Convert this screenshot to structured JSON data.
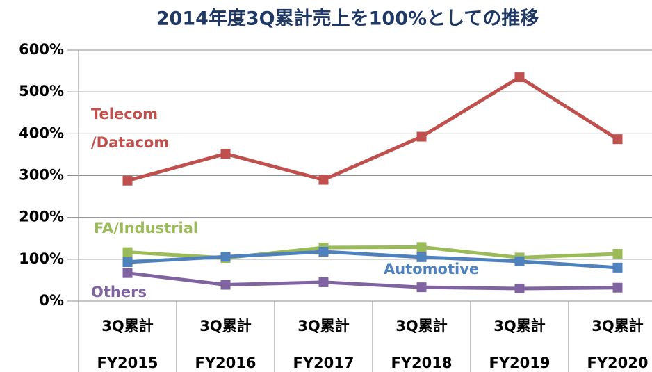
{
  "chart_data": {
    "type": "line",
    "title": "2014年度3Q累計売上を100%としての推移",
    "categories": [
      [
        "3Q累計",
        "FY2015"
      ],
      [
        "3Q累計",
        "FY2016"
      ],
      [
        "3Q累計",
        "FY2017"
      ],
      [
        "3Q累計",
        "FY2018"
      ],
      [
        "3Q累計",
        "FY2019"
      ],
      [
        "3Q累計",
        "FY2020"
      ]
    ],
    "series": [
      {
        "name": "Telecom\n/Datacom",
        "color": "#c0504d",
        "values": [
          288,
          352,
          290,
          393,
          535,
          387
        ]
      },
      {
        "name": "FA/Industrial",
        "color": "#9bbb59",
        "values": [
          117,
          103,
          128,
          129,
          104,
          113
        ]
      },
      {
        "name": "Automotive",
        "color": "#4f81bd",
        "values": [
          93,
          106,
          118,
          105,
          95,
          80
        ]
      },
      {
        "name": "Others",
        "color": "#8064a2",
        "values": [
          67,
          39,
          45,
          33,
          30,
          32
        ]
      }
    ],
    "ylim": [
      0,
      600
    ],
    "yticks": [
      {
        "value": 0,
        "label": "0%"
      },
      {
        "value": 100,
        "label": "100%"
      },
      {
        "value": 200,
        "label": "200%"
      },
      {
        "value": 300,
        "label": "300%"
      },
      {
        "value": 400,
        "label": "400%"
      },
      {
        "value": 500,
        "label": "500%"
      },
      {
        "value": 600,
        "label": "600%"
      }
    ],
    "grid": true
  }
}
